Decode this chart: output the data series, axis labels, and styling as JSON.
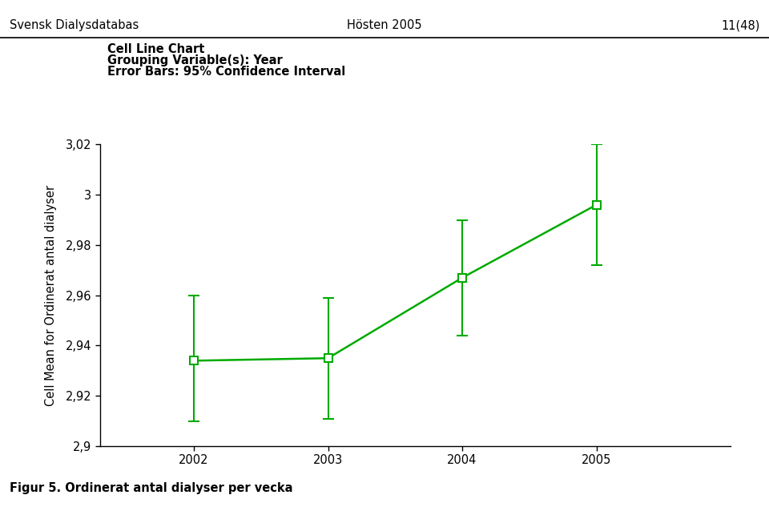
{
  "header_left": "Svensk Dialysdatabas",
  "header_center": "Hösten 2005",
  "header_right": "11(48)",
  "chart_title_line1": "Cell Line Chart",
  "chart_title_line2": "Grouping Variable(s): Year",
  "chart_title_line3": "Error Bars: 95% Confidence Interval",
  "years": [
    2002,
    2003,
    2004,
    2005
  ],
  "means": [
    2.934,
    2.935,
    2.967,
    2.996
  ],
  "error_upper": [
    2.96,
    2.959,
    2.99,
    3.02
  ],
  "error_lower": [
    2.91,
    2.911,
    2.944,
    2.972
  ],
  "ylabel": "Cell Mean for Ordinerat antal dialyser",
  "ylim": [
    2.9,
    3.02
  ],
  "yticks": [
    2.9,
    2.92,
    2.94,
    2.96,
    2.98,
    3.0,
    3.02
  ],
  "ytick_labels": [
    "2,9",
    "2,92",
    "2,94",
    "2,96",
    "2,98",
    "3",
    "3,02"
  ],
  "line_color": "#00aa00",
  "marker_face": "white",
  "footer_text": "Figur 5. Ordinerat antal dialyser per vecka",
  "background_color": "#ffffff"
}
